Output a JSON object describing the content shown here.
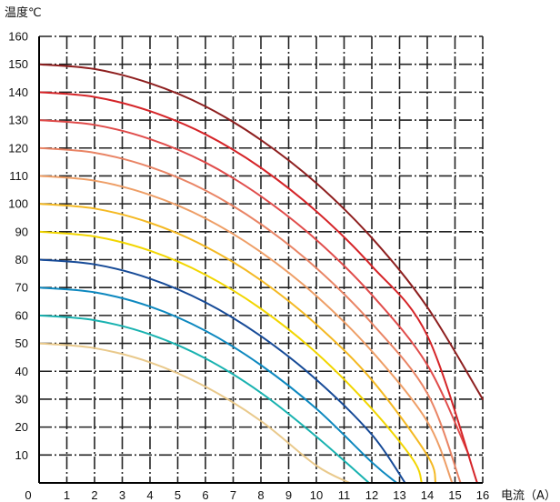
{
  "chart_data": {
    "type": "line",
    "title": "",
    "ylabel": "温度℃",
    "xlabel": "电流（A）",
    "xlim": [
      0,
      16
    ],
    "ylim": [
      0,
      160
    ],
    "x_ticks": [
      0,
      1,
      2,
      3,
      4,
      5,
      6,
      7,
      8,
      9,
      10,
      11,
      12,
      13,
      14,
      15,
      16
    ],
    "y_ticks": [
      10,
      20,
      30,
      40,
      50,
      60,
      70,
      80,
      90,
      100,
      110,
      120,
      130,
      140,
      150,
      160
    ],
    "grid": true,
    "legend": "none",
    "series": [
      {
        "color": "#e9c98b",
        "x": [
          0,
          2,
          4,
          6,
          8,
          10,
          11.2
        ],
        "y": [
          50,
          48.3,
          43.2,
          34.5,
          22.2,
          6.2,
          0
        ]
      },
      {
        "color": "#19b2b0",
        "x": [
          0,
          2,
          4,
          6,
          8,
          10,
          11.9
        ],
        "y": [
          60,
          58.3,
          53.2,
          44.6,
          32.3,
          16.6,
          0
        ]
      },
      {
        "color": "#0d88bf",
        "x": [
          0,
          2,
          4,
          6,
          8,
          10,
          12,
          12.9
        ],
        "y": [
          70,
          68.3,
          63.2,
          54.5,
          42.2,
          26.6,
          7.4,
          0
        ]
      },
      {
        "color": "#164a97",
        "x": [
          0,
          2,
          4,
          6,
          8,
          10,
          12,
          13.2
        ],
        "y": [
          80,
          78.3,
          73.2,
          64.7,
          52.6,
          37.0,
          17.3,
          0
        ]
      },
      {
        "color": "#f2d600",
        "x": [
          0,
          2,
          4,
          6,
          8,
          10,
          12,
          13.5,
          13.8
        ],
        "y": [
          90,
          88.3,
          83.2,
          74.6,
          62.4,
          46.6,
          26.6,
          8.1,
          0
        ]
      },
      {
        "color": "#f4b923",
        "x": [
          0,
          2,
          4,
          6,
          8,
          10,
          12,
          14,
          14.3
        ],
        "y": [
          100,
          98.3,
          93.2,
          84.7,
          72.6,
          56.8,
          36.9,
          9.9,
          0
        ]
      },
      {
        "color": "#ee9e66",
        "x": [
          0,
          2,
          4,
          6,
          8,
          10,
          12,
          14,
          14.9
        ],
        "y": [
          110,
          108.3,
          103.2,
          94.8,
          82.7,
          67.0,
          47.2,
          22.0,
          0
        ]
      },
      {
        "color": "#e98465",
        "x": [
          0,
          2,
          4,
          6,
          8,
          10,
          12,
          14,
          15.2
        ],
        "y": [
          120,
          118.3,
          113.2,
          104.8,
          92.7,
          77.0,
          57.2,
          32.1,
          0
        ]
      },
      {
        "color": "#e04c4b",
        "x": [
          0,
          2,
          4,
          6,
          8,
          10,
          12,
          14,
          15.5
        ],
        "y": [
          130,
          128.3,
          123.2,
          114.8,
          102.7,
          87.1,
          67.4,
          42.3,
          10.0
        ]
      },
      {
        "color": "#d52428",
        "x": [
          0,
          2,
          4,
          6,
          8,
          10,
          12,
          14,
          15.8
        ],
        "y": [
          140,
          138.3,
          133.2,
          124.9,
          112.9,
          97.3,
          77.7,
          52.8,
          0
        ]
      },
      {
        "color": "#8e1f1f",
        "x": [
          0,
          2,
          4,
          6,
          8,
          10,
          12,
          14,
          16
        ],
        "y": [
          150,
          148.3,
          143.2,
          134.9,
          122.9,
          107.4,
          87.8,
          63.0,
          30.0
        ]
      }
    ]
  }
}
